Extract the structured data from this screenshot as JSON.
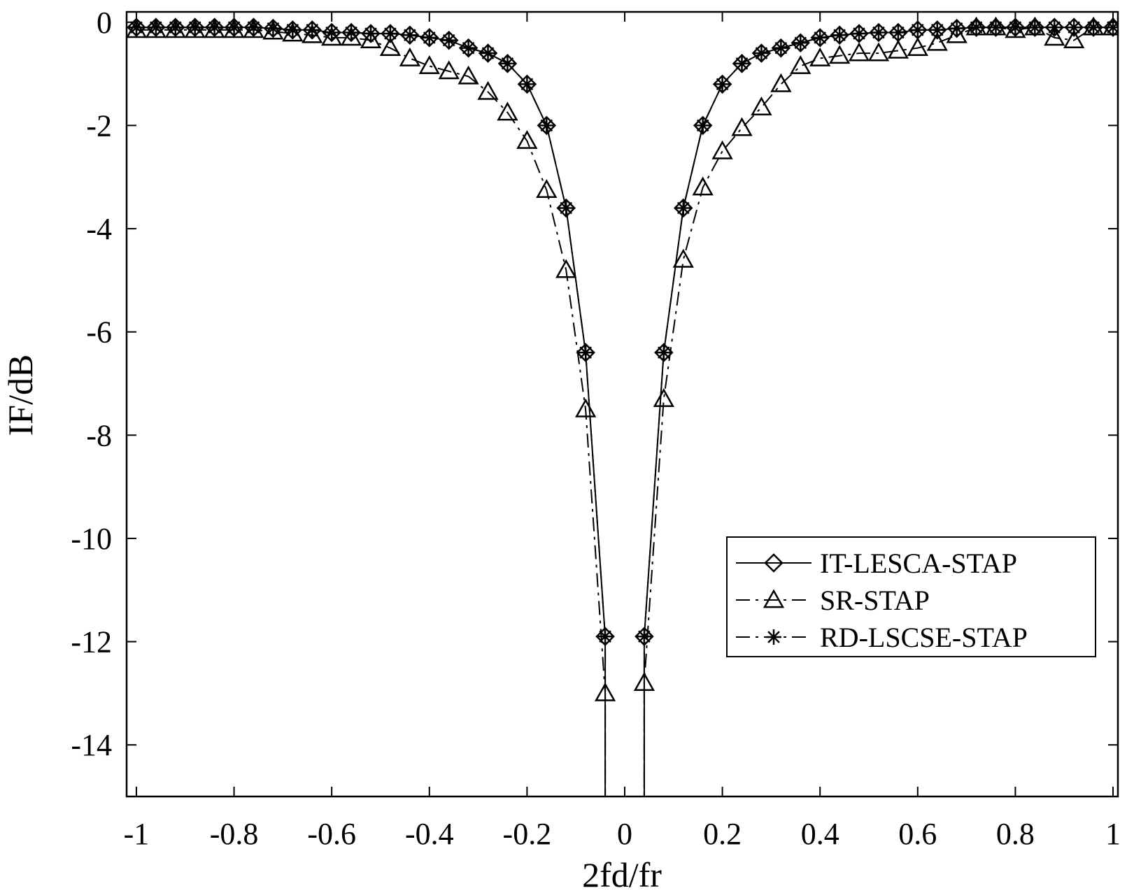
{
  "chart_data": {
    "type": "line",
    "xlabel": "2fd/fr",
    "ylabel": "IF/dB",
    "xlim": [
      -1.02,
      1.01
    ],
    "ylim": [
      -15,
      0.2
    ],
    "x_ticks": [
      -1,
      -0.8,
      -0.6,
      -0.4,
      -0.2,
      0,
      0.2,
      0.4,
      0.6,
      0.8,
      1
    ],
    "x_tick_labels": [
      "-1",
      "-0.8",
      "-0.6",
      "-0.4",
      "-0.2",
      "0",
      "0.2",
      "0.4",
      "0.6",
      "0.8",
      "1"
    ],
    "y_ticks": [
      0,
      -2,
      -4,
      -6,
      -8,
      -10,
      -12,
      -14
    ],
    "y_tick_labels": [
      "0",
      "-2",
      "-4",
      "-6",
      "-8",
      "-10",
      "-12",
      "-14"
    ],
    "grid": false,
    "legend_position": "lower-right",
    "series": [
      {
        "name": "IT-LESCA-STAP",
        "line": "solid",
        "marker": "diamond",
        "x": [
          -1.0,
          -0.96,
          -0.92,
          -0.88,
          -0.84,
          -0.8,
          -0.76,
          -0.72,
          -0.68,
          -0.64,
          -0.6,
          -0.56,
          -0.52,
          -0.48,
          -0.44,
          -0.4,
          -0.36,
          -0.32,
          -0.28,
          -0.24,
          -0.2,
          -0.16,
          -0.12,
          -0.08,
          -0.04,
          -0.04,
          0.04,
          0.04,
          0.08,
          0.12,
          0.16,
          0.2,
          0.24,
          0.28,
          0.32,
          0.36,
          0.4,
          0.44,
          0.48,
          0.52,
          0.56,
          0.6,
          0.64,
          0.68,
          0.72,
          0.76,
          0.8,
          0.84,
          0.88,
          0.92,
          0.96,
          1.0
        ],
        "y": [
          -0.1,
          -0.1,
          -0.1,
          -0.1,
          -0.1,
          -0.1,
          -0.1,
          -0.12,
          -0.15,
          -0.15,
          -0.2,
          -0.2,
          -0.22,
          -0.22,
          -0.25,
          -0.3,
          -0.35,
          -0.5,
          -0.6,
          -0.8,
          -1.2,
          -2.0,
          -3.6,
          -6.4,
          -11.9,
          -15.0,
          -15.0,
          -11.9,
          -6.4,
          -3.6,
          -2.0,
          -1.2,
          -0.8,
          -0.6,
          -0.5,
          -0.4,
          -0.3,
          -0.25,
          -0.22,
          -0.2,
          -0.2,
          -0.15,
          -0.15,
          -0.12,
          -0.1,
          -0.1,
          -0.1,
          -0.1,
          -0.1,
          -0.1,
          -0.1,
          -0.1
        ],
        "marker_mask": [
          1,
          1,
          1,
          1,
          1,
          1,
          1,
          1,
          1,
          1,
          1,
          1,
          1,
          1,
          1,
          1,
          1,
          1,
          1,
          1,
          1,
          1,
          1,
          1,
          1,
          0,
          0,
          1,
          1,
          1,
          1,
          1,
          1,
          1,
          1,
          1,
          1,
          1,
          1,
          1,
          1,
          1,
          1,
          1,
          1,
          1,
          1,
          1,
          1,
          1,
          1,
          1
        ]
      },
      {
        "name": "SR-STAP",
        "line": "dashdot",
        "marker": "triangle",
        "x": [
          -1.0,
          -0.96,
          -0.92,
          -0.88,
          -0.84,
          -0.8,
          -0.76,
          -0.72,
          -0.68,
          -0.64,
          -0.6,
          -0.56,
          -0.52,
          -0.48,
          -0.44,
          -0.4,
          -0.36,
          -0.32,
          -0.28,
          -0.24,
          -0.2,
          -0.16,
          -0.12,
          -0.08,
          -0.04,
          -0.04,
          0.04,
          0.04,
          0.08,
          0.12,
          0.16,
          0.2,
          0.24,
          0.28,
          0.32,
          0.36,
          0.4,
          0.44,
          0.48,
          0.52,
          0.56,
          0.6,
          0.64,
          0.68,
          0.72,
          0.76,
          0.8,
          0.84,
          0.88,
          0.92,
          0.96,
          1.0
        ],
        "y": [
          -0.15,
          -0.15,
          -0.15,
          -0.15,
          -0.15,
          -0.15,
          -0.15,
          -0.18,
          -0.22,
          -0.25,
          -0.3,
          -0.3,
          -0.35,
          -0.5,
          -0.7,
          -0.85,
          -0.95,
          -1.05,
          -1.35,
          -1.75,
          -2.3,
          -3.25,
          -4.8,
          -7.5,
          -13.0,
          -15.0,
          -15.0,
          -12.8,
          -7.3,
          -4.6,
          -3.2,
          -2.5,
          -2.05,
          -1.65,
          -1.2,
          -0.85,
          -0.7,
          -0.65,
          -0.6,
          -0.6,
          -0.55,
          -0.5,
          -0.4,
          -0.25,
          -0.1,
          -0.1,
          -0.15,
          -0.1,
          -0.3,
          -0.35,
          -0.1,
          -0.1
        ],
        "marker_mask": [
          1,
          1,
          1,
          1,
          1,
          1,
          1,
          1,
          1,
          1,
          1,
          1,
          1,
          1,
          1,
          1,
          1,
          1,
          1,
          1,
          1,
          1,
          1,
          1,
          1,
          0,
          0,
          1,
          1,
          1,
          1,
          1,
          1,
          1,
          1,
          1,
          1,
          1,
          1,
          1,
          1,
          1,
          1,
          1,
          1,
          1,
          1,
          1,
          1,
          1,
          1,
          1
        ]
      },
      {
        "name": "RD-LSCSE-STAP",
        "line": "dashdot",
        "marker": "asterisk",
        "x": [
          -1.0,
          -0.96,
          -0.92,
          -0.88,
          -0.84,
          -0.8,
          -0.76,
          -0.72,
          -0.68,
          -0.64,
          -0.6,
          -0.56,
          -0.52,
          -0.48,
          -0.44,
          -0.4,
          -0.36,
          -0.32,
          -0.28,
          -0.24,
          -0.2,
          -0.16,
          -0.12,
          -0.08,
          -0.04,
          -0.04,
          0.04,
          0.04,
          0.08,
          0.12,
          0.16,
          0.2,
          0.24,
          0.28,
          0.32,
          0.36,
          0.4,
          0.44,
          0.48,
          0.52,
          0.56,
          0.6,
          0.64,
          0.68,
          0.72,
          0.76,
          0.8,
          0.84,
          0.88,
          0.92,
          0.96,
          1.0
        ],
        "y": [
          -0.1,
          -0.1,
          -0.1,
          -0.1,
          -0.1,
          -0.1,
          -0.1,
          -0.12,
          -0.15,
          -0.15,
          -0.2,
          -0.2,
          -0.22,
          -0.22,
          -0.25,
          -0.3,
          -0.35,
          -0.5,
          -0.6,
          -0.8,
          -1.2,
          -2.0,
          -3.6,
          -6.4,
          -11.9,
          -15.0,
          -15.0,
          -11.9,
          -6.4,
          -3.6,
          -2.0,
          -1.2,
          -0.8,
          -0.6,
          -0.5,
          -0.4,
          -0.3,
          -0.25,
          -0.22,
          -0.2,
          -0.2,
          -0.15,
          -0.15,
          -0.12,
          -0.1,
          -0.1,
          -0.1,
          -0.1,
          -0.1,
          -0.1,
          -0.1,
          -0.1
        ],
        "marker_mask": [
          1,
          1,
          1,
          1,
          1,
          1,
          1,
          1,
          1,
          1,
          1,
          1,
          1,
          1,
          1,
          1,
          1,
          1,
          1,
          1,
          1,
          1,
          1,
          1,
          1,
          0,
          0,
          1,
          1,
          1,
          1,
          1,
          1,
          1,
          1,
          1,
          1,
          1,
          1,
          1,
          1,
          1,
          1,
          1,
          1,
          1,
          1,
          1,
          1,
          1,
          1,
          1
        ]
      }
    ]
  }
}
